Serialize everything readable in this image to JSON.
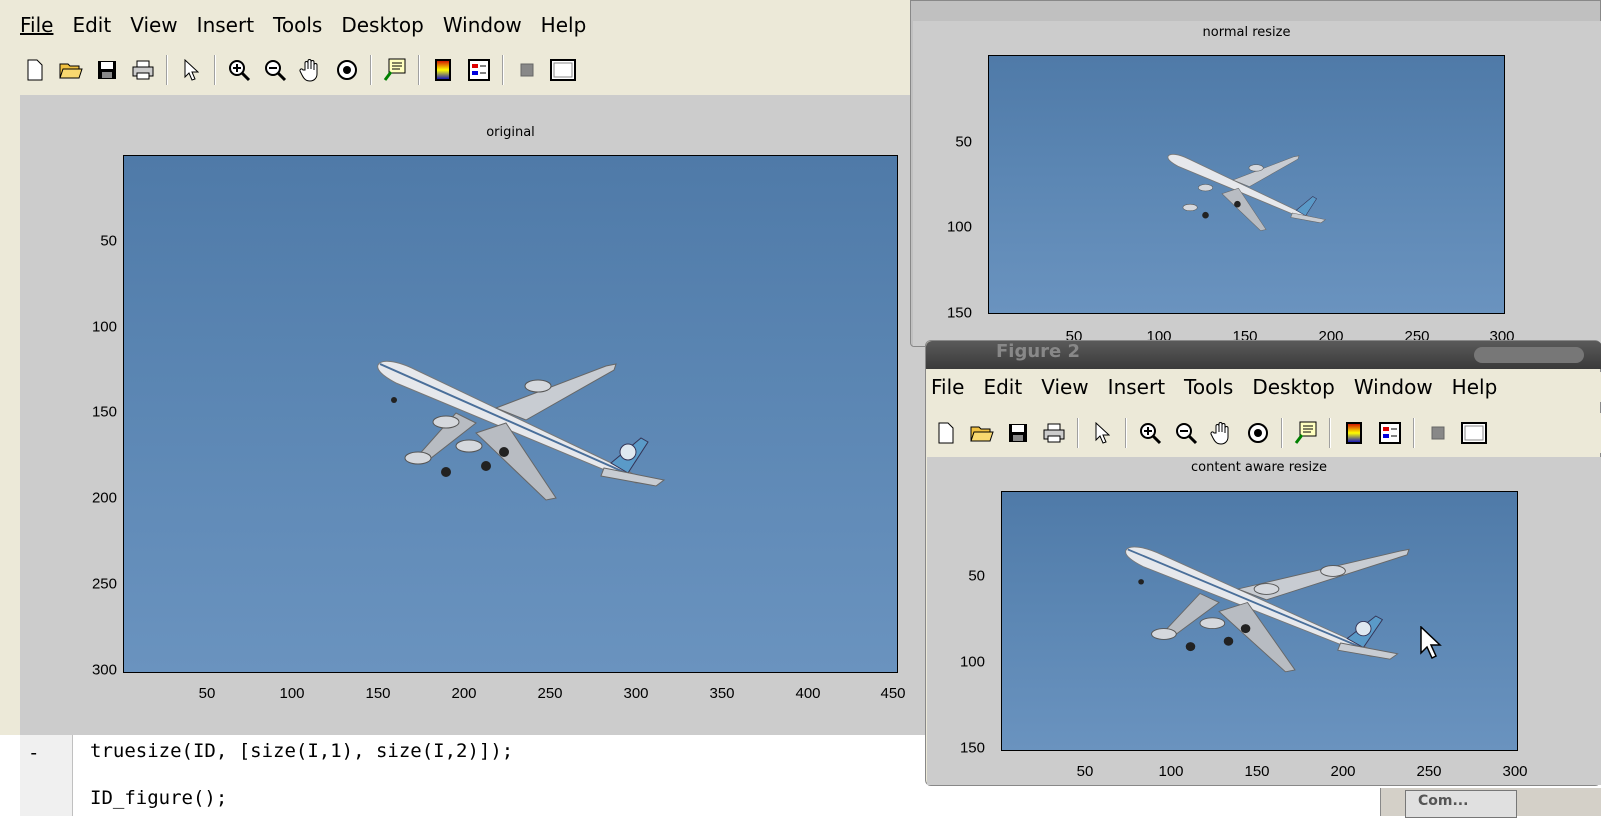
{
  "main_window": {
    "menu": [
      "File",
      "Edit",
      "View",
      "Insert",
      "Tools",
      "Desktop",
      "Window",
      "Help"
    ],
    "axes_title": "original",
    "x_ticks": [
      "50",
      "100",
      "150",
      "200",
      "250",
      "300",
      "350",
      "400",
      "450"
    ],
    "y_ticks": [
      "50",
      "100",
      "150",
      "200",
      "250",
      "300"
    ]
  },
  "figure_normal": {
    "axes_title": "normal resize",
    "x_ticks": [
      "50",
      "100",
      "150",
      "200",
      "250",
      "300"
    ],
    "y_ticks": [
      "50",
      "100",
      "150"
    ]
  },
  "figure_2": {
    "title": "Figure 2",
    "menu": [
      "File",
      "Edit",
      "View",
      "Insert",
      "Tools",
      "Desktop",
      "Window",
      "Help"
    ],
    "axes_title": "content aware resize",
    "x_ticks": [
      "50",
      "100",
      "150",
      "200",
      "250",
      "300"
    ],
    "y_ticks": [
      "50",
      "100",
      "150"
    ]
  },
  "editor": {
    "line_marker": "-",
    "line1": "truesize(ID, [size(I,1), size(I,2)]);",
    "line2": "ID_figure();"
  },
  "taskbar": {
    "label": "Com..."
  }
}
